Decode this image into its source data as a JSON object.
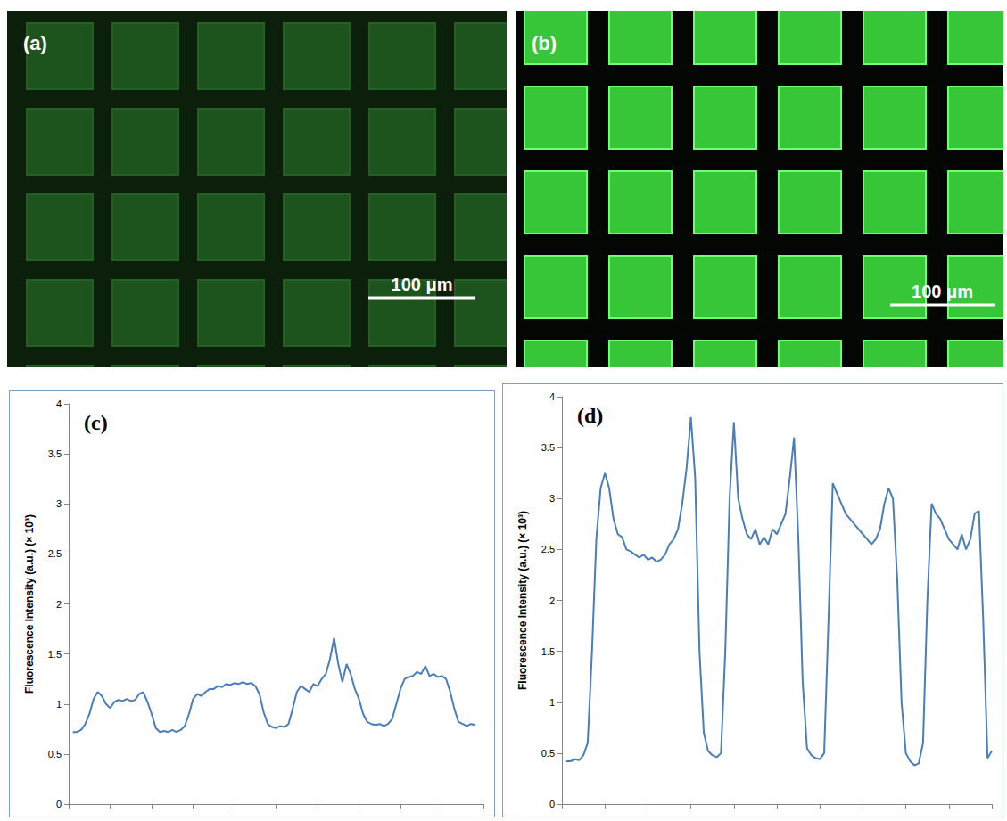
{
  "images": [
    {
      "label": "(a)",
      "scale_bar": "100 μm",
      "color": "#1f5a1f"
    },
    {
      "label": "(b)",
      "scale_bar": "100 μm",
      "color": "#3ddc3d"
    }
  ],
  "chart_data": [
    {
      "type": "line",
      "title": "(c)",
      "y_label": "Fluorescence Intensity (a.u.) (× 10³)",
      "color": "#4a7ebb",
      "x": [
        1,
        2,
        3,
        4,
        5,
        6,
        7,
        8,
        9,
        10,
        11,
        12,
        13,
        14,
        15,
        16,
        17,
        18,
        19,
        20,
        21,
        22,
        23,
        24,
        25,
        26,
        27,
        28,
        29,
        30,
        31,
        32,
        33,
        34,
        35,
        36,
        37,
        38,
        39,
        40,
        41,
        42,
        43,
        44,
        45,
        46,
        47,
        48,
        49,
        50,
        51,
        52,
        53,
        54,
        55,
        56,
        57,
        58,
        59,
        60,
        61,
        62,
        63,
        64,
        65,
        66,
        67,
        68,
        69,
        70,
        71,
        72,
        73,
        74,
        75,
        76,
        77,
        78,
        79,
        80,
        81,
        82,
        83,
        84,
        85,
        86,
        87,
        88,
        89,
        90,
        91,
        92,
        93,
        94,
        95,
        96,
        97,
        98
      ],
      "values": [
        0.72,
        0.72,
        0.74,
        0.8,
        0.9,
        1.05,
        1.12,
        1.08,
        1.0,
        0.96,
        1.02,
        1.04,
        1.03,
        1.05,
        1.03,
        1.04,
        1.1,
        1.12,
        1.02,
        0.9,
        0.76,
        0.72,
        0.73,
        0.72,
        0.74,
        0.72,
        0.74,
        0.78,
        0.9,
        1.05,
        1.1,
        1.08,
        1.12,
        1.15,
        1.15,
        1.18,
        1.17,
        1.2,
        1.19,
        1.21,
        1.2,
        1.22,
        1.2,
        1.21,
        1.18,
        1.1,
        0.92,
        0.8,
        0.77,
        0.76,
        0.78,
        0.77,
        0.8,
        0.95,
        1.12,
        1.18,
        1.15,
        1.12,
        1.2,
        1.18,
        1.25,
        1.3,
        1.45,
        1.66,
        1.4,
        1.22,
        1.4,
        1.3,
        1.15,
        1.05,
        0.9,
        0.82,
        0.8,
        0.79,
        0.8,
        0.78,
        0.8,
        0.85,
        1.0,
        1.15,
        1.25,
        1.27,
        1.28,
        1.32,
        1.3,
        1.38,
        1.28,
        1.3,
        1.27,
        1.28,
        1.25,
        1.12,
        0.95,
        0.82,
        0.8,
        0.78,
        0.8,
        0.79
      ],
      "xlim": [
        0,
        100
      ],
      "xticks": [
        0,
        10,
        20,
        30,
        40,
        50,
        60,
        70,
        80,
        90,
        100
      ],
      "ylim": [
        0,
        4
      ],
      "yticks": [
        0,
        0.5,
        1,
        1.5,
        2,
        2.5,
        3,
        3.5,
        4
      ],
      "grid": false,
      "tick_labels": "y"
    },
    {
      "type": "line",
      "title": "(d)",
      "y_label": "Fluorescence Intensity (a.u.) (× 10³)",
      "color": "#4a7ebb",
      "x": [
        1,
        2,
        3,
        4,
        5,
        6,
        7,
        8,
        9,
        10,
        11,
        12,
        13,
        14,
        15,
        16,
        17,
        18,
        19,
        20,
        21,
        22,
        23,
        24,
        25,
        26,
        27,
        28,
        29,
        30,
        31,
        32,
        33,
        34,
        35,
        36,
        37,
        38,
        39,
        40,
        41,
        42,
        43,
        44,
        45,
        46,
        47,
        48,
        49,
        50,
        51,
        52,
        53,
        54,
        55,
        56,
        57,
        58,
        59,
        60,
        61,
        62,
        63,
        64,
        65,
        66,
        67,
        68,
        69,
        70,
        71,
        72,
        73,
        74,
        75,
        76,
        77,
        78,
        79,
        80,
        81,
        82,
        83,
        84,
        85,
        86,
        87,
        88,
        89,
        90,
        91,
        92,
        93,
        94,
        95,
        96,
        97,
        98,
        99,
        100
      ],
      "values": [
        0.42,
        0.42,
        0.44,
        0.43,
        0.48,
        0.6,
        1.5,
        2.6,
        3.1,
        3.25,
        3.1,
        2.8,
        2.65,
        2.62,
        2.5,
        2.48,
        2.45,
        2.42,
        2.45,
        2.4,
        2.42,
        2.38,
        2.4,
        2.45,
        2.55,
        2.6,
        2.7,
        2.95,
        3.3,
        3.8,
        3.2,
        1.5,
        0.7,
        0.52,
        0.48,
        0.46,
        0.5,
        1.5,
        3.0,
        3.75,
        3.0,
        2.8,
        2.65,
        2.6,
        2.7,
        2.55,
        2.62,
        2.55,
        2.7,
        2.65,
        2.75,
        2.85,
        3.2,
        3.6,
        2.6,
        1.2,
        0.55,
        0.48,
        0.45,
        0.44,
        0.5,
        1.8,
        3.15,
        3.05,
        2.95,
        2.85,
        2.8,
        2.75,
        2.7,
        2.65,
        2.6,
        2.55,
        2.6,
        2.7,
        2.95,
        3.1,
        3.0,
        2.2,
        1.0,
        0.5,
        0.42,
        0.38,
        0.4,
        0.6,
        2.0,
        2.95,
        2.85,
        2.8,
        2.7,
        2.6,
        2.55,
        2.5,
        2.65,
        2.5,
        2.6,
        2.85,
        2.88,
        1.8,
        0.45,
        0.52
      ],
      "xlim": [
        0,
        100
      ],
      "xticks": [
        0,
        10,
        20,
        30,
        40,
        50,
        60,
        70,
        80,
        90,
        100
      ],
      "ylim": [
        0,
        4
      ],
      "yticks": [
        0,
        0.5,
        1,
        1.5,
        2,
        2.5,
        3,
        3.5,
        4
      ],
      "grid": false,
      "tick_labels": "y"
    }
  ]
}
